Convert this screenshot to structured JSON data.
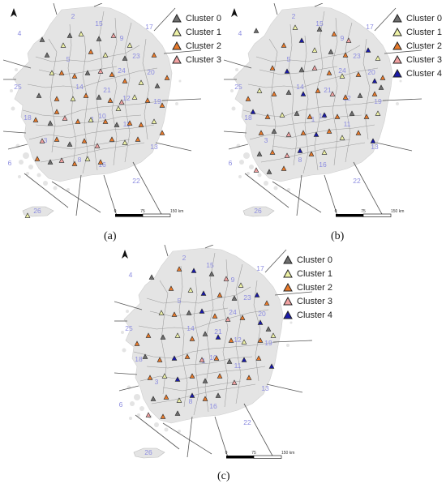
{
  "captions": {
    "a": "(a)",
    "b": "(b)",
    "c": "(c)"
  },
  "scalebar": {
    "ticks": [
      "0",
      "75",
      "150 km"
    ]
  },
  "colors": {
    "Cluster 0": "#6e6e6e",
    "Cluster 1": "#eef2a6",
    "Cluster 2": "#e8792a",
    "Cluster 3": "#f2a2a2",
    "Cluster 4": "#1a1aa8",
    "land": "#e4e4e4",
    "boundary": "#9a9a9a",
    "route": "#555555",
    "region_label": "#8c8ce0"
  },
  "icons": {
    "north_arrow": "north-arrow-icon",
    "legend_marker": "triangle-marker-icon"
  },
  "region_labels": [
    "1",
    "2",
    "3",
    "4",
    "5",
    "6",
    "8",
    "9",
    "10",
    "11",
    "12",
    "13",
    "14",
    "15",
    "16",
    "17",
    "18",
    "19",
    "20",
    "21",
    "22",
    "23",
    "24",
    "25",
    "26"
  ],
  "panels": {
    "a": {
      "legend": [
        "Cluster 0",
        "Cluster 1",
        "Cluster 2",
        "Cluster 3"
      ]
    },
    "b": {
      "legend": [
        "Cluster 0",
        "Cluster 1",
        "Cluster 2",
        "Cluster 3",
        "Cluster 4"
      ]
    },
    "c": {
      "legend": [
        "Cluster 0",
        "Cluster 1",
        "Cluster 2",
        "Cluster 3",
        "Cluster 4"
      ]
    }
  }
}
